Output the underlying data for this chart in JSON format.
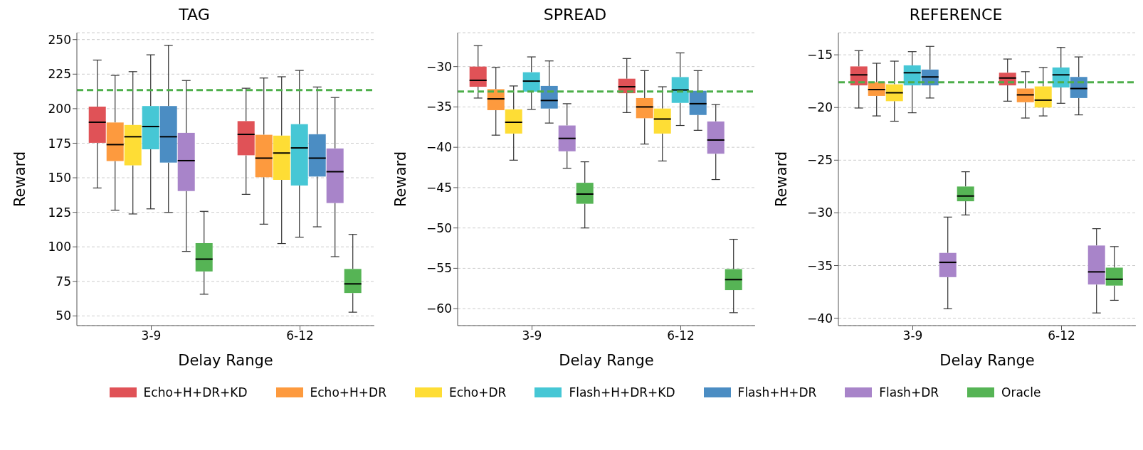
{
  "chart_data": [
    {
      "type": "box",
      "title": "TAG",
      "xlabel": "Delay Range",
      "ylabel": "Reward",
      "categories": [
        "3-9",
        "6-12"
      ],
      "ylim": [
        43,
        255
      ],
      "yticks": [
        50,
        75,
        100,
        125,
        150,
        175,
        200,
        225,
        250
      ],
      "grid": "y",
      "legend": "bottom",
      "ref_lines": [
        {
          "axis": "y",
          "value": 213.5,
          "color": "#4daf4a",
          "line_style": "dashed"
        }
      ],
      "series": [
        {
          "name": "Echo+H+DR+KD",
          "color": "#e05257",
          "boxes": [
            {
              "low": 142.6,
              "q1": 175.3,
              "median": 190.2,
              "q3": 201.5,
              "high": 235.2
            },
            {
              "low": 138,
              "q1": 166.3,
              "median": 181.4,
              "q3": 191,
              "high": 214.8
            }
          ]
        },
        {
          "name": "Echo+H+DR",
          "color": "#fd9a3e",
          "boxes": [
            {
              "low": 126.5,
              "q1": 162.1,
              "median": 174,
              "q3": 190,
              "high": 224.1
            },
            {
              "low": 116.4,
              "q1": 150.4,
              "median": 164.2,
              "q3": 181.1,
              "high": 222.2
            }
          ]
        },
        {
          "name": "Echo+DR",
          "color": "#fedd35",
          "boxes": [
            {
              "low": 123.8,
              "q1": 159,
              "median": 179.7,
              "q3": 188.2,
              "high": 226.8
            },
            {
              "low": 102.4,
              "q1": 148.5,
              "median": 167.9,
              "q3": 180.5,
              "high": 223.1
            }
          ]
        },
        {
          "name": "Flash+H+DR+KD",
          "color": "#46c7d5",
          "boxes": [
            {
              "low": 127.5,
              "q1": 170.6,
              "median": 187.1,
              "q3": 201.9,
              "high": 239
            },
            {
              "low": 107,
              "q1": 144.4,
              "median": 171.6,
              "q3": 188.8,
              "high": 227.7
            }
          ]
        },
        {
          "name": "Flash+H+DR",
          "color": "#4b8dc3",
          "boxes": [
            {
              "low": 124.9,
              "q1": 161,
              "median": 179.7,
              "q3": 201.9,
              "high": 245.9
            },
            {
              "low": 114.5,
              "q1": 150.9,
              "median": 164.2,
              "q3": 181.5,
              "high": 215.7
            }
          ]
        },
        {
          "name": "Flash+DR",
          "color": "#a884c9",
          "boxes": [
            {
              "low": 96.7,
              "q1": 140.4,
              "median": 162.4,
              "q3": 182.5,
              "high": 220.4
            },
            {
              "low": 92.9,
              "q1": 131.7,
              "median": 154.4,
              "q3": 171.2,
              "high": 208.1
            }
          ]
        },
        {
          "name": "Oracle",
          "color": "#56b455",
          "boxes": [
            {
              "low": 65.7,
              "q1": 82.2,
              "median": 91.1,
              "q3": 102.7,
              "high": 125.7
            },
            {
              "low": 52.7,
              "q1": 66.6,
              "median": 73.2,
              "q3": 84,
              "high": 109
            }
          ]
        }
      ]
    },
    {
      "type": "box",
      "title": "SPREAD",
      "xlabel": "Delay Range",
      "ylabel": "Reward",
      "categories": [
        "3-9",
        "6-12"
      ],
      "ylim": [
        -62.1,
        -25.8
      ],
      "yticks": [
        {
          "value": -60,
          "label": "−60"
        },
        {
          "value": -55,
          "label": "−55"
        },
        {
          "value": -50,
          "label": "−50"
        },
        {
          "value": -45,
          "label": "−45"
        },
        {
          "value": -40,
          "label": "−40"
        },
        {
          "value": -35,
          "label": "−35"
        },
        {
          "value": -30,
          "label": "−30"
        }
      ],
      "grid": "y",
      "ref_lines": [
        {
          "axis": "y",
          "value": -33.1,
          "color": "#4daf4a",
          "line_style": "dashed"
        }
      ],
      "series": [
        {
          "color": "#e05257",
          "boxes": [
            {
              "low": -33.9,
              "q1": -32.5,
              "median": -31.7,
              "q3": -30,
              "high": -27.4
            },
            {
              "low": -35.7,
              "q1": -33.3,
              "median": -32.5,
              "q3": -31.5,
              "high": -29
            }
          ]
        },
        {
          "color": "#fd9a3e",
          "boxes": [
            {
              "low": -38.5,
              "q1": -35.4,
              "median": -34,
              "q3": -32.8,
              "high": -30.1
            },
            {
              "low": -39.6,
              "q1": -36.4,
              "median": -35,
              "q3": -33.9,
              "high": -30.5
            }
          ]
        },
        {
          "color": "#fedd35",
          "boxes": [
            {
              "low": -41.6,
              "q1": -38.3,
              "median": -36.9,
              "q3": -35.3,
              "high": -32.4
            },
            {
              "low": -41.7,
              "q1": -38.3,
              "median": -36.5,
              "q3": -35.2,
              "high": -32.5
            }
          ]
        },
        {
          "color": "#46c7d5",
          "boxes": [
            {
              "low": -35.3,
              "q1": -33.1,
              "median": -31.8,
              "q3": -30.7,
              "high": -28.8
            },
            {
              "low": -37.3,
              "q1": -34.5,
              "median": -32.9,
              "q3": -31.3,
              "high": -28.3
            }
          ]
        },
        {
          "color": "#4b8dc3",
          "boxes": [
            {
              "low": -37,
              "q1": -35.2,
              "median": -34.2,
              "q3": -32.4,
              "high": -29.3
            },
            {
              "low": -37.9,
              "q1": -36,
              "median": -34.6,
              "q3": -33,
              "high": -30.5
            }
          ]
        },
        {
          "color": "#a884c9",
          "boxes": [
            {
              "low": -42.6,
              "q1": -40.5,
              "median": -38.9,
              "q3": -37.3,
              "high": -34.6
            },
            {
              "low": -44,
              "q1": -40.8,
              "median": -39.1,
              "q3": -36.8,
              "high": -34.7
            }
          ]
        },
        {
          "color": "#56b455",
          "boxes": [
            {
              "low": -50,
              "q1": -47,
              "median": -45.8,
              "q3": -44.4,
              "high": -41.8
            },
            {
              "low": -60.5,
              "q1": -57.7,
              "median": -56.4,
              "q3": -55.1,
              "high": -51.4
            }
          ]
        }
      ]
    },
    {
      "type": "box",
      "title": "REFERENCE",
      "xlabel": "Delay Range",
      "ylabel": "Reward",
      "categories": [
        "3-9",
        "6-12"
      ],
      "ylim": [
        -40.7,
        -12.9
      ],
      "yticks": [
        {
          "value": -40,
          "label": "−40"
        },
        {
          "value": -35,
          "label": "−35"
        },
        {
          "value": -30,
          "label": "−30"
        },
        {
          "value": -25,
          "label": "−25"
        },
        {
          "value": -20,
          "label": "−20"
        },
        {
          "value": -15,
          "label": "−15"
        }
      ],
      "grid": "y",
      "ref_lines": [
        {
          "axis": "y",
          "value": -17.6,
          "color": "#4daf4a",
          "line_style": "dashed"
        }
      ],
      "series": [
        {
          "color": "#e05257",
          "boxes": [
            {
              "low": -20.05,
              "q1": -17.9,
              "median": -16.9,
              "q3": -16.1,
              "high": -14.6
            },
            {
              "low": -19.4,
              "q1": -17.9,
              "median": -17.2,
              "q3": -16.7,
              "high": -15.4
            }
          ]
        },
        {
          "color": "#fd9a3e",
          "boxes": [
            {
              "low": -20.8,
              "q1": -18.9,
              "median": -18.3,
              "q3": -17.6,
              "high": -15.8
            },
            {
              "low": -21,
              "q1": -19.5,
              "median": -18.8,
              "q3": -18.2,
              "high": -16.6
            }
          ]
        },
        {
          "color": "#fedd35",
          "boxes": [
            {
              "low": -21.3,
              "q1": -19.4,
              "median": -18.6,
              "q3": -17.8,
              "high": -15.6
            },
            {
              "low": -20.8,
              "q1": -20,
              "median": -19.3,
              "q3": -18,
              "high": -16.2
            }
          ]
        },
        {
          "color": "#46c7d5",
          "boxes": [
            {
              "low": -20.5,
              "q1": -17.9,
              "median": -16.7,
              "q3": -16,
              "high": -14.7
            },
            {
              "low": -19.6,
              "q1": -18.1,
              "median": -16.9,
              "q3": -16.2,
              "high": -14.3
            }
          ]
        },
        {
          "color": "#4b8dc3",
          "boxes": [
            {
              "low": -19.1,
              "q1": -17.9,
              "median": -17.1,
              "q3": -16.4,
              "high": -14.2
            },
            {
              "low": -20.7,
              "q1": -19.1,
              "median": -18.2,
              "q3": -17.1,
              "high": -15.2
            }
          ]
        },
        {
          "color": "#a884c9",
          "boxes": [
            {
              "low": -39.1,
              "q1": -36.1,
              "median": -34.7,
              "q3": -33.8,
              "high": -30.4
            },
            {
              "low": -39.5,
              "q1": -36.8,
              "median": -35.6,
              "q3": -33.1,
              "high": -31.5
            }
          ]
        },
        {
          "color": "#56b455",
          "boxes": [
            {
              "low": -30.2,
              "q1": -28.9,
              "median": -28.4,
              "q3": -27.5,
              "high": -26.1
            },
            {
              "low": -38.3,
              "q1": -36.9,
              "median": -36.3,
              "q3": -35.2,
              "high": -33.2
            }
          ]
        }
      ]
    }
  ]
}
